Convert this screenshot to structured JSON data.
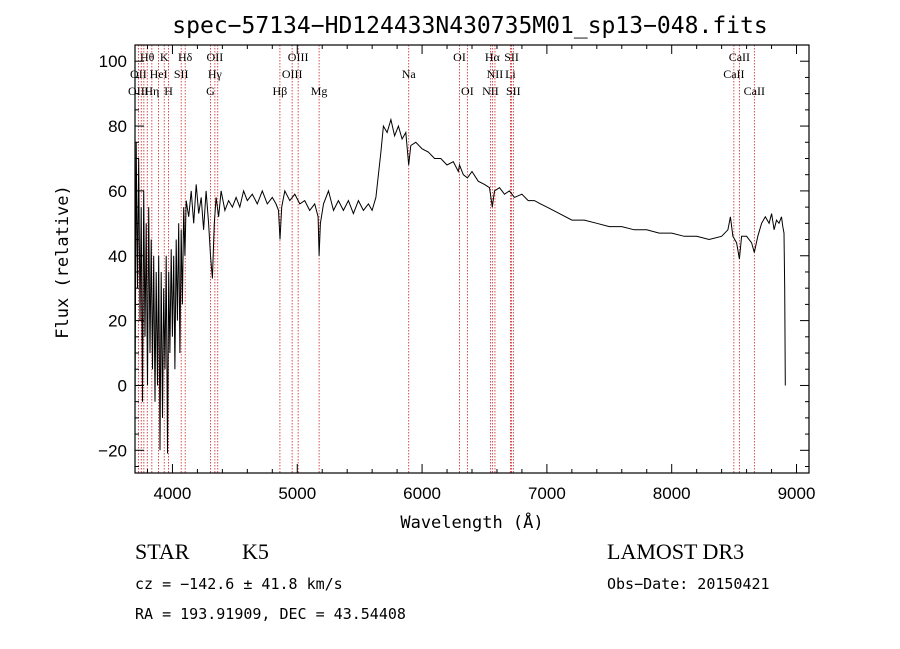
{
  "chart_data": {
    "type": "line",
    "title": "spec−57134−HD124433N430735M01_sp13−048.fits",
    "xlabel": "Wavelength (Å)",
    "ylabel": "Flux (relative)",
    "xlim": [
      3700,
      9100
    ],
    "ylim": [
      -27,
      105
    ],
    "xticks": [
      4000,
      5000,
      6000,
      7000,
      8000,
      9000
    ],
    "yticks": [
      -20,
      0,
      20,
      40,
      60,
      80,
      100
    ],
    "ytick_labels": [
      "−20",
      "0",
      "20",
      "40",
      "60",
      "80",
      "100"
    ],
    "spectrum_points": [
      [
        3700,
        -10
      ],
      [
        3710,
        75
      ],
      [
        3720,
        30
      ],
      [
        3730,
        70
      ],
      [
        3740,
        20
      ],
      [
        3750,
        55
      ],
      [
        3760,
        -5
      ],
      [
        3770,
        60
      ],
      [
        3780,
        15
      ],
      [
        3790,
        50
      ],
      [
        3800,
        0
      ],
      [
        3810,
        55
      ],
      [
        3820,
        10
      ],
      [
        3830,
        45
      ],
      [
        3840,
        5
      ],
      [
        3850,
        40
      ],
      [
        3860,
        -5
      ],
      [
        3870,
        35
      ],
      [
        3880,
        0
      ],
      [
        3890,
        40
      ],
      [
        3900,
        -20
      ],
      [
        3910,
        35
      ],
      [
        3920,
        -10
      ],
      [
        3930,
        30
      ],
      [
        3940,
        5
      ],
      [
        3950,
        40
      ],
      [
        3960,
        -21
      ],
      [
        3970,
        35
      ],
      [
        3980,
        10
      ],
      [
        3990,
        42
      ],
      [
        4000,
        15
      ],
      [
        4010,
        40
      ],
      [
        4020,
        5
      ],
      [
        4030,
        45
      ],
      [
        4040,
        20
      ],
      [
        4050,
        50
      ],
      [
        4060,
        10
      ],
      [
        4070,
        48
      ],
      [
        4080,
        25
      ],
      [
        4090,
        55
      ],
      [
        4100,
        40
      ],
      [
        4110,
        57
      ],
      [
        4130,
        52
      ],
      [
        4150,
        60
      ],
      [
        4170,
        50
      ],
      [
        4190,
        62
      ],
      [
        4210,
        53
      ],
      [
        4230,
        58
      ],
      [
        4250,
        48
      ],
      [
        4270,
        60
      ],
      [
        4290,
        50
      ],
      [
        4305,
        40
      ],
      [
        4320,
        33
      ],
      [
        4335,
        50
      ],
      [
        4350,
        58
      ],
      [
        4370,
        52
      ],
      [
        4390,
        60
      ],
      [
        4420,
        54
      ],
      [
        4450,
        57
      ],
      [
        4480,
        55
      ],
      [
        4510,
        58
      ],
      [
        4540,
        55
      ],
      [
        4570,
        60
      ],
      [
        4600,
        57
      ],
      [
        4640,
        59
      ],
      [
        4680,
        56
      ],
      [
        4720,
        60
      ],
      [
        4760,
        56
      ],
      [
        4800,
        58
      ],
      [
        4830,
        56
      ],
      [
        4850,
        54
      ],
      [
        4862,
        45
      ],
      [
        4875,
        55
      ],
      [
        4900,
        60
      ],
      [
        4940,
        57
      ],
      [
        4980,
        59
      ],
      [
        5020,
        56
      ],
      [
        5060,
        57
      ],
      [
        5100,
        54
      ],
      [
        5140,
        56
      ],
      [
        5167,
        52
      ],
      [
        5175,
        40
      ],
      [
        5185,
        50
      ],
      [
        5210,
        56
      ],
      [
        5250,
        60
      ],
      [
        5290,
        54
      ],
      [
        5330,
        57
      ],
      [
        5370,
        54
      ],
      [
        5410,
        57
      ],
      [
        5450,
        53
      ],
      [
        5490,
        57
      ],
      [
        5530,
        54
      ],
      [
        5570,
        56
      ],
      [
        5600,
        54
      ],
      [
        5630,
        58
      ],
      [
        5650,
        65
      ],
      [
        5670,
        72
      ],
      [
        5690,
        80
      ],
      [
        5720,
        78
      ],
      [
        5750,
        82
      ],
      [
        5780,
        77
      ],
      [
        5810,
        80
      ],
      [
        5840,
        76
      ],
      [
        5870,
        78
      ],
      [
        5893,
        68
      ],
      [
        5910,
        74
      ],
      [
        5950,
        75
      ],
      [
        6000,
        73
      ],
      [
        6050,
        72
      ],
      [
        6100,
        70
      ],
      [
        6150,
        70
      ],
      [
        6200,
        68
      ],
      [
        6250,
        69
      ],
      [
        6290,
        66
      ],
      [
        6300,
        68
      ],
      [
        6330,
        65
      ],
      [
        6363,
        64
      ],
      [
        6400,
        66
      ],
      [
        6450,
        63
      ],
      [
        6500,
        62
      ],
      [
        6540,
        61
      ],
      [
        6563,
        55
      ],
      [
        6580,
        60
      ],
      [
        6620,
        61
      ],
      [
        6660,
        59
      ],
      [
        6700,
        60
      ],
      [
        6740,
        58
      ],
      [
        6800,
        59
      ],
      [
        6850,
        57
      ],
      [
        6900,
        57
      ],
      [
        6950,
        56
      ],
      [
        7000,
        55
      ],
      [
        7100,
        53
      ],
      [
        7200,
        51
      ],
      [
        7300,
        51
      ],
      [
        7400,
        50
      ],
      [
        7500,
        49
      ],
      [
        7600,
        49
      ],
      [
        7700,
        48
      ],
      [
        7800,
        48
      ],
      [
        7900,
        47
      ],
      [
        8000,
        47
      ],
      [
        8100,
        46
      ],
      [
        8200,
        46
      ],
      [
        8300,
        45
      ],
      [
        8400,
        46
      ],
      [
        8450,
        48
      ],
      [
        8470,
        52
      ],
      [
        8490,
        46
      ],
      [
        8520,
        44
      ],
      [
        8542,
        39
      ],
      [
        8560,
        46
      ],
      [
        8600,
        46
      ],
      [
        8640,
        44
      ],
      [
        8662,
        41
      ],
      [
        8690,
        46
      ],
      [
        8720,
        50
      ],
      [
        8750,
        52
      ],
      [
        8780,
        50
      ],
      [
        8800,
        53
      ],
      [
        8820,
        48
      ],
      [
        8840,
        51
      ],
      [
        8860,
        50
      ],
      [
        8880,
        52
      ],
      [
        8890,
        49
      ],
      [
        8900,
        47
      ],
      [
        8905,
        30
      ],
      [
        8910,
        0
      ]
    ],
    "lines_row1": [
      {
        "label": "Hθ",
        "x": 3798
      },
      {
        "label": "K",
        "x": 3934
      },
      {
        "label": "Hδ",
        "x": 4102
      },
      {
        "label": "OII",
        "x": 4340
      },
      {
        "label": "OIII",
        "x": 5007
      },
      {
        "label": "OI",
        "x": 6300
      },
      {
        "label": "Hα",
        "x": 6563
      },
      {
        "label": "SII",
        "x": 6717
      },
      {
        "label": "CaII",
        "x": 8542
      }
    ],
    "lines_row2": [
      {
        "label": "OII",
        "x": 3727
      },
      {
        "label": "HeI",
        "x": 3889
      },
      {
        "label": "SII",
        "x": 4070
      },
      {
        "label": "Hγ",
        "x": 4340
      },
      {
        "label": "OIII",
        "x": 4959
      },
      {
        "label": "Na",
        "x": 5893
      },
      {
        "label": "NII",
        "x": 6584
      },
      {
        "label": "Li",
        "x": 6708
      },
      {
        "label": "CaII",
        "x": 8498
      }
    ],
    "lines_row3": [
      {
        "label": "OIII",
        "x": 3727
      },
      {
        "label": "Hη",
        "x": 3835
      },
      {
        "label": "H",
        "x": 3969
      },
      {
        "label": "G",
        "x": 4305
      },
      {
        "label": "Hβ",
        "x": 4861
      },
      {
        "label": "Mg",
        "x": 5175
      },
      {
        "label": "OI",
        "x": 6363
      },
      {
        "label": "NII",
        "x": 6548
      },
      {
        "label": "SII",
        "x": 6731
      },
      {
        "label": "CaII",
        "x": 8662
      }
    ],
    "line_marks": [
      3727,
      3750,
      3771,
      3798,
      3835,
      3889,
      3934,
      3969,
      4070,
      4102,
      4305,
      4340,
      4363,
      4861,
      4959,
      5007,
      5175,
      5893,
      6300,
      6363,
      6548,
      6563,
      6584,
      6708,
      6717,
      6731,
      8498,
      8542,
      8662
    ],
    "line_mark_color": "#cc2222",
    "spectrum_color": "#000000"
  },
  "info": {
    "object_class": "STAR",
    "subclass": "K5",
    "survey": "LAMOST DR3",
    "cz": "cz = −142.6 ± 41.8 km/s",
    "obs_date": "Obs−Date: 20150421",
    "radec": "RA = 193.91909, DEC =  43.54408"
  }
}
